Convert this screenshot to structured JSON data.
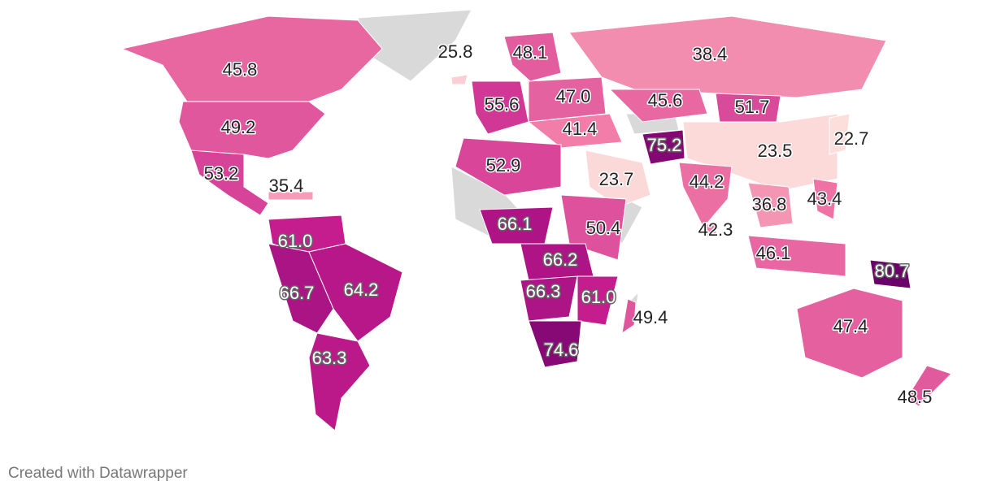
{
  "map": {
    "regions": [
      {
        "value": 45.8,
        "label": "45.8"
      },
      {
        "value": 49.2,
        "label": "49.2"
      },
      {
        "value": 53.2,
        "label": "53.2"
      },
      {
        "value": 35.4,
        "label": "35.4"
      },
      {
        "value": 61.0,
        "label": "61.0"
      },
      {
        "value": 66.7,
        "label": "66.7"
      },
      {
        "value": 64.2,
        "label": "64.2"
      },
      {
        "value": 63.3,
        "label": "63.3"
      },
      {
        "value": 25.8,
        "label": "25.8"
      },
      {
        "value": 48.1,
        "label": "48.1"
      },
      {
        "value": 55.6,
        "label": "55.6"
      },
      {
        "value": 47.0,
        "label": "47.0"
      },
      {
        "value": 38.4,
        "label": "38.4"
      },
      {
        "value": 45.6,
        "label": "45.6"
      },
      {
        "value": 51.7,
        "label": "51.7"
      },
      {
        "value": 41.4,
        "label": "41.4"
      },
      {
        "value": 75.2,
        "label": "75.2"
      },
      {
        "value": 23.5,
        "label": "23.5"
      },
      {
        "value": 22.7,
        "label": "22.7"
      },
      {
        "value": 52.9,
        "label": "52.9"
      },
      {
        "value": 23.7,
        "label": "23.7"
      },
      {
        "value": 44.2,
        "label": "44.2"
      },
      {
        "value": 36.8,
        "label": "36.8"
      },
      {
        "value": 43.4,
        "label": "43.4"
      },
      {
        "value": 42.3,
        "label": "42.3"
      },
      {
        "value": 66.1,
        "label": "66.1"
      },
      {
        "value": 50.4,
        "label": "50.4"
      },
      {
        "value": 66.2,
        "label": "66.2"
      },
      {
        "value": 66.3,
        "label": "66.3"
      },
      {
        "value": 61.0,
        "label": "61.0"
      },
      {
        "value": 49.4,
        "label": "49.4"
      },
      {
        "value": 74.6,
        "label": "74.6"
      },
      {
        "value": 46.1,
        "label": "46.1"
      },
      {
        "value": 80.7,
        "label": "80.7"
      },
      {
        "value": 47.4,
        "label": "47.4"
      },
      {
        "value": 48.5,
        "label": "48.5"
      }
    ],
    "colors": [
      "#fcdedb",
      "#f17aa6",
      "#c41b8e",
      "#6a0069"
    ],
    "no_data_color": "#d9d9d9"
  },
  "footer": "Created with Datawrapper"
}
